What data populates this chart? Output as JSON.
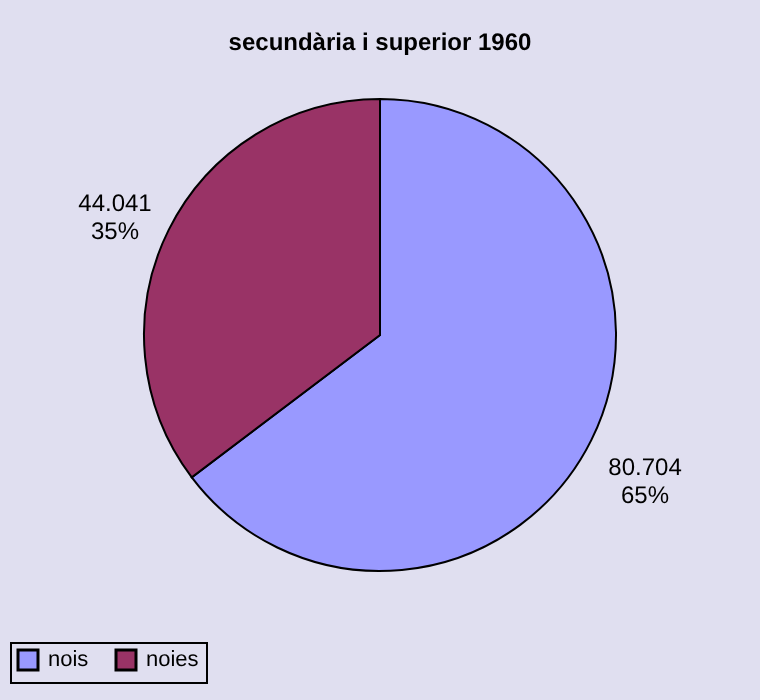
{
  "chart_data": {
    "type": "pie",
    "title": "secundària i superior 1960",
    "categories": [
      "nois",
      "noies"
    ],
    "values": [
      80704,
      44041
    ],
    "colors": [
      "#9999ff",
      "#993366"
    ],
    "value_labels": [
      "80.704\n65%",
      "44.041\n35%"
    ],
    "legend": "bottom"
  }
}
